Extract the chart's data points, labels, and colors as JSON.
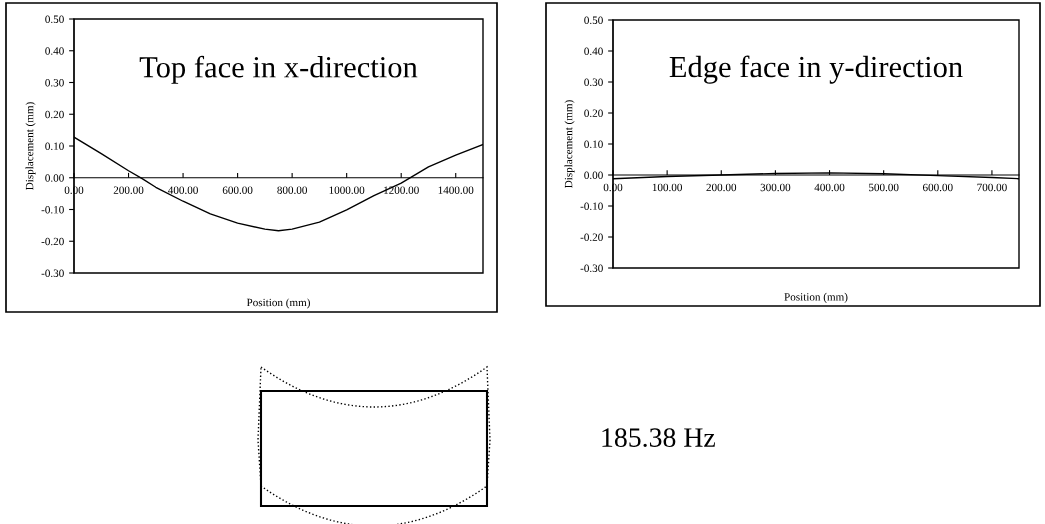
{
  "chart_data": [
    {
      "type": "line",
      "title": "Top face in x-direction",
      "xlabel": "Position (mm)",
      "ylabel": "Displacement (mm)",
      "x": [
        0,
        100,
        200,
        250,
        300,
        400,
        500,
        600,
        700,
        750,
        800,
        900,
        1000,
        1100,
        1200,
        1300,
        1400,
        1500
      ],
      "series": [
        {
          "color": "#000000",
          "values": [
            0.128,
            0.076,
            0.022,
            -0.003,
            -0.03,
            -0.074,
            -0.114,
            -0.143,
            -0.162,
            -0.167,
            -0.162,
            -0.14,
            -0.101,
            -0.056,
            -0.017,
            0.034,
            0.071,
            0.105
          ]
        }
      ],
      "xlim": [
        0,
        1500
      ],
      "xticks": [
        {
          "value": 0,
          "label": "0.00"
        },
        {
          "value": 200,
          "label": "200.00"
        },
        {
          "value": 400,
          "label": "400.00"
        },
        {
          "value": 600,
          "label": "600.00"
        },
        {
          "value": 800,
          "label": "800.00"
        },
        {
          "value": 1000,
          "label": "1000.00"
        },
        {
          "value": 1200,
          "label": "1200.00"
        },
        {
          "value": 1400,
          "label": "1400.00"
        }
      ],
      "ylim": [
        -0.3,
        0.5
      ],
      "yticks": [
        {
          "value": -0.3,
          "label": "-0.30"
        },
        {
          "value": -0.2,
          "label": "-0.20"
        },
        {
          "value": -0.1,
          "label": "-0.10"
        },
        {
          "value": 0,
          "label": "0.00"
        },
        {
          "value": 0.1,
          "label": "0.10"
        },
        {
          "value": 0.2,
          "label": "0.20"
        },
        {
          "value": 0.3,
          "label": "0.30"
        },
        {
          "value": 0.4,
          "label": "0.40"
        },
        {
          "value": 0.5,
          "label": "0.50"
        }
      ],
      "grid": false,
      "marker": "none",
      "line_style": "solid"
    },
    {
      "type": "line",
      "title": "Edge face in y-direction",
      "xlabel": "Position (mm)",
      "ylabel": "Displacement (mm)",
      "x": [
        0,
        100,
        200,
        300,
        400,
        500,
        600,
        700,
        750
      ],
      "series": [
        {
          "color": "#000000",
          "values": [
            -0.012,
            -0.005,
            0.0,
            0.005,
            0.007,
            0.004,
            -0.002,
            -0.008,
            -0.012
          ]
        }
      ],
      "xlim": [
        0,
        750
      ],
      "xticks": [
        {
          "value": 0,
          "label": "0.00"
        },
        {
          "value": 100,
          "label": "100.00"
        },
        {
          "value": 200,
          "label": "200.00"
        },
        {
          "value": 300,
          "label": "300.00"
        },
        {
          "value": 400,
          "label": "400.00"
        },
        {
          "value": 500,
          "label": "500.00"
        },
        {
          "value": 600,
          "label": "600.00"
        },
        {
          "value": 700,
          "label": "700.00"
        }
      ],
      "ylim": [
        -0.3,
        0.5
      ],
      "yticks": [
        {
          "value": -0.3,
          "label": "-0.30"
        },
        {
          "value": -0.2,
          "label": "-0.20"
        },
        {
          "value": -0.1,
          "label": "-0.10"
        },
        {
          "value": 0,
          "label": "0.00"
        },
        {
          "value": 0.1,
          "label": "0.10"
        },
        {
          "value": 0.2,
          "label": "0.20"
        },
        {
          "value": 0.3,
          "label": "0.30"
        },
        {
          "value": 0.4,
          "label": "0.40"
        },
        {
          "value": 0.5,
          "label": "0.50"
        }
      ],
      "grid": false,
      "marker": "none",
      "line_style": "solid"
    },
    {
      "type": "other",
      "annotations": [
        "185.38 Hz"
      ]
    }
  ]
}
